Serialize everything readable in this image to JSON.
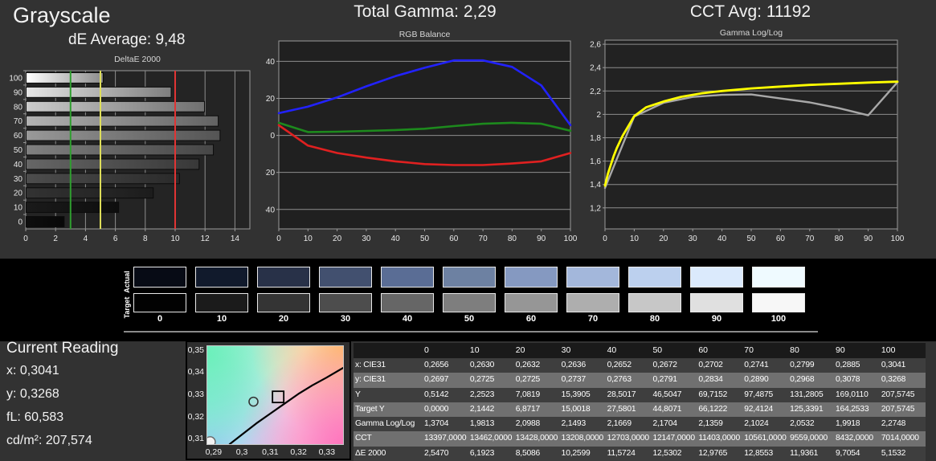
{
  "header": {
    "title": "Grayscale",
    "de_average": "dE Average: 9,48",
    "total_gamma": "Total Gamma: 2,29",
    "cct_avg": "CCT Avg: 11192"
  },
  "charts": {
    "delta_e": {
      "type": "bar",
      "title": "DeltaE 2000",
      "orientation": "horizontal",
      "categories": [
        100,
        90,
        80,
        70,
        60,
        50,
        40,
        30,
        20,
        10,
        0
      ],
      "values": [
        5.1532,
        9.7054,
        11.9361,
        12.8553,
        12.9765,
        12.5302,
        11.5724,
        10.2599,
        8.5086,
        6.1923,
        2.547
      ],
      "xlim": [
        0,
        15
      ],
      "xticks": [
        0,
        2,
        4,
        6,
        8,
        10,
        12,
        14
      ],
      "reference_lines": [
        {
          "name": "good-limit",
          "value": 3,
          "color": "#2f9e2f"
        },
        {
          "name": "warning-limit",
          "value": 5,
          "color": "#dede5a"
        },
        {
          "name": "error-limit",
          "value": 10,
          "color": "#e03434"
        }
      ]
    },
    "rgb_balance": {
      "type": "line",
      "title": "RGB Balance",
      "x": [
        0,
        10,
        20,
        30,
        40,
        50,
        60,
        70,
        80,
        90,
        100
      ],
      "ylim": [
        -50.5,
        51
      ],
      "yticks": [
        40,
        20,
        0,
        -20,
        -40
      ],
      "ytick_labels": [
        "40",
        "20",
        "0",
        "-20",
        "-40"
      ],
      "series": [
        {
          "name": "red",
          "color": "#e02020",
          "values": [
            5.5,
            -5.5,
            -9.5,
            -12,
            -14,
            -15.5,
            -16,
            -16,
            -15.2,
            -14,
            -9.5
          ]
        },
        {
          "name": "green",
          "color": "#1d8a1d",
          "values": [
            6.8,
            1.8,
            2,
            2.4,
            2.9,
            3.6,
            5,
            6.3,
            6.8,
            6.3,
            2.5
          ]
        },
        {
          "name": "blue",
          "color": "#2222ff",
          "values": [
            12,
            15.5,
            20.5,
            26.5,
            32,
            36.5,
            40.5,
            40.5,
            37,
            27,
            5.5
          ]
        }
      ]
    },
    "gamma": {
      "type": "line",
      "title": "Gamma Log/Log",
      "x": [
        0,
        10,
        20,
        30,
        40,
        50,
        60,
        70,
        80,
        90,
        100
      ],
      "ylim": [
        1.02,
        2.635
      ],
      "yticks": [
        2.6,
        2.4,
        2.2,
        2.0,
        1.8,
        1.6,
        1.4,
        1.2
      ],
      "ytick_labels": [
        "2,6",
        "2,4",
        "2,2",
        "2",
        "1,8",
        "1,6",
        "1,4",
        "1,2"
      ],
      "series": [
        {
          "name": "measured",
          "color": "#a8a8a8",
          "values": [
            1.3704,
            1.9813,
            2.0988,
            2.1493,
            2.1669,
            2.1704,
            2.1359,
            2.1024,
            2.0532,
            1.9918,
            2.2748
          ]
        },
        {
          "name": "target",
          "color": "#ffff00",
          "x_dense": [
            0,
            1,
            2,
            3,
            4,
            6,
            8,
            10,
            14,
            20,
            26,
            33,
            40,
            50,
            60,
            70,
            80,
            90,
            100
          ],
          "values": [
            1.39,
            1.49,
            1.57,
            1.645,
            1.71,
            1.815,
            1.9,
            1.985,
            2.06,
            2.11,
            2.15,
            2.18,
            2.2,
            2.222,
            2.238,
            2.252,
            2.262,
            2.272,
            2.28
          ]
        }
      ]
    },
    "cie": {
      "type": "scatter",
      "xlim": [
        0.2875,
        0.336
      ],
      "ylim": [
        0.3075,
        0.3525
      ],
      "xticks": [
        "0,29",
        "0,3",
        "0,31",
        "0,32",
        "0,33"
      ],
      "xtick_values": [
        0.29,
        0.3,
        0.31,
        0.32,
        0.33
      ],
      "yticks": [
        "0,35",
        "0,34",
        "0,33",
        "0,32",
        "0,31"
      ],
      "ytick_values": [
        0.35,
        0.34,
        0.33,
        0.32,
        0.31
      ],
      "locus_curve": [
        [
          0.2955,
          0.3075
        ],
        [
          0.3,
          0.312
        ],
        [
          0.305,
          0.317
        ],
        [
          0.31,
          0.3215
        ],
        [
          0.315,
          0.326
        ],
        [
          0.32,
          0.3305
        ],
        [
          0.325,
          0.3345
        ],
        [
          0.33,
          0.338
        ],
        [
          0.336,
          0.3425
        ]
      ],
      "measured_point": [
        0.304,
        0.327
      ],
      "target_point": [
        0.3128,
        0.3292
      ],
      "corner_point": [
        0.2885,
        0.3085
      ]
    }
  },
  "swatches": {
    "actual_label": "Actual",
    "target_label": "Target",
    "levels": [
      "0",
      "10",
      "20",
      "30",
      "40",
      "50",
      "60",
      "70",
      "80",
      "90",
      "100"
    ],
    "actual_colors": [
      "#070b15",
      "#111a2c",
      "#283148",
      "#42506f",
      "#5a6d95",
      "#6d81a2",
      "#8599c1",
      "#a3b7db",
      "#bcd0ee",
      "#dbeafc",
      "#effaff"
    ],
    "target_colors": [
      "#020202",
      "#1b1b1b",
      "#343434",
      "#4d4d4d",
      "#666666",
      "#7e7e7e",
      "#969696",
      "#aeaeae",
      "#c7c7c7",
      "#e0e0e0",
      "#f7f7f7"
    ]
  },
  "current_reading": {
    "title": "Current Reading",
    "rows": [
      {
        "label": "x:",
        "value": "0,3041"
      },
      {
        "label": "y:",
        "value": "0,3268"
      },
      {
        "label": "fL:",
        "value": "60,583"
      },
      {
        "label": "cd/m²:",
        "value": "207,574"
      }
    ]
  },
  "table": {
    "corner": "",
    "columns": [
      "0",
      "10",
      "20",
      "30",
      "40",
      "50",
      "60",
      "70",
      "80",
      "90",
      "100"
    ],
    "rows": [
      {
        "label": "x: CIE31",
        "values": [
          "0,2656",
          "0,2630",
          "0,2632",
          "0,2636",
          "0,2652",
          "0,2672",
          "0,2702",
          "0,2741",
          "0,2799",
          "0,2885",
          "0,3041"
        ]
      },
      {
        "label": "y: CIE31",
        "values": [
          "0,2697",
          "0,2725",
          "0,2725",
          "0,2737",
          "0,2763",
          "0,2791",
          "0,2834",
          "0,2890",
          "0,2968",
          "0,3078",
          "0,3268"
        ]
      },
      {
        "label": "Y",
        "values": [
          "0,5142",
          "2,2523",
          "7,0819",
          "15,3905",
          "28,5017",
          "46,5047",
          "69,7152",
          "97,4875",
          "131,2805",
          "169,0110",
          "207,5745"
        ]
      },
      {
        "label": "Target Y",
        "values": [
          "0,0000",
          "2,1442",
          "6,8717",
          "15,0018",
          "27,5801",
          "44,8071",
          "66,1222",
          "92,4124",
          "125,3391",
          "164,2533",
          "207,5745"
        ]
      },
      {
        "label": "Gamma Log/Log",
        "values": [
          "1,3704",
          "1,9813",
          "2,0988",
          "2,1493",
          "2,1669",
          "2,1704",
          "2,1359",
          "2,1024",
          "2,0532",
          "1,9918",
          "2,2748"
        ]
      },
      {
        "label": "CCT",
        "values": [
          "13397,0000",
          "13462,0000",
          "13428,0000",
          "13208,0000",
          "12703,0000",
          "12147,0000",
          "11403,0000",
          "10561,0000",
          "9559,0000",
          "8432,0000",
          "7014,0000"
        ]
      },
      {
        "label": "ΔE 2000",
        "values": [
          "2,5470",
          "6,1923",
          "8,5086",
          "10,2599",
          "11,5724",
          "12,5302",
          "12,9765",
          "12,8553",
          "11,9361",
          "9,7054",
          "5,1532"
        ]
      }
    ]
  }
}
